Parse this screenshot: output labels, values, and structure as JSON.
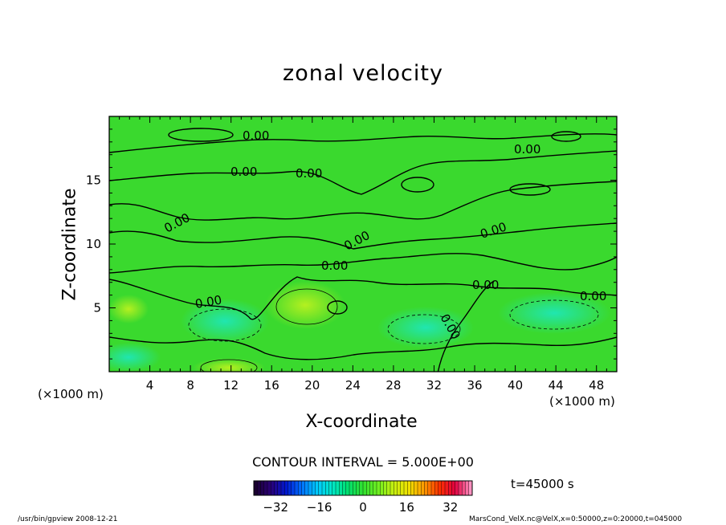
{
  "chart_data": {
    "type": "heatmap",
    "title": "zonal velocity",
    "xlabel": "X-coordinate",
    "ylabel": "Z-coordinate",
    "x_unit": "(×1000 m)",
    "y_unit": "(×1000 m)",
    "xlim": [
      0,
      50
    ],
    "ylim": [
      0,
      20
    ],
    "x_ticks": [
      4,
      8,
      12,
      16,
      20,
      24,
      28,
      32,
      36,
      40,
      44,
      48
    ],
    "y_ticks": [
      5,
      10,
      15
    ],
    "contour_interval_text": "CONTOUR INTERVAL = 5.000E+00",
    "contour_label": "0.00",
    "colorbar": {
      "ticks": [
        -32,
        -16,
        0,
        16,
        32
      ],
      "range": [
        -40,
        40
      ],
      "colors": [
        "#1a0030",
        "#2a0078",
        "#0018d0",
        "#0070ff",
        "#00c8ff",
        "#00e8c8",
        "#00e070",
        "#30e030",
        "#70f020",
        "#c8f010",
        "#f0e000",
        "#ff9800",
        "#ff3000",
        "#e00040",
        "#ff90c0"
      ]
    },
    "time_label": "t=45000 s"
  },
  "footer": {
    "left": "/usr/bin/gpview   2008-12-21",
    "right": "MarsCond_VelX.nc@VelX,x=0:50000,z=0:20000,t=045000"
  }
}
